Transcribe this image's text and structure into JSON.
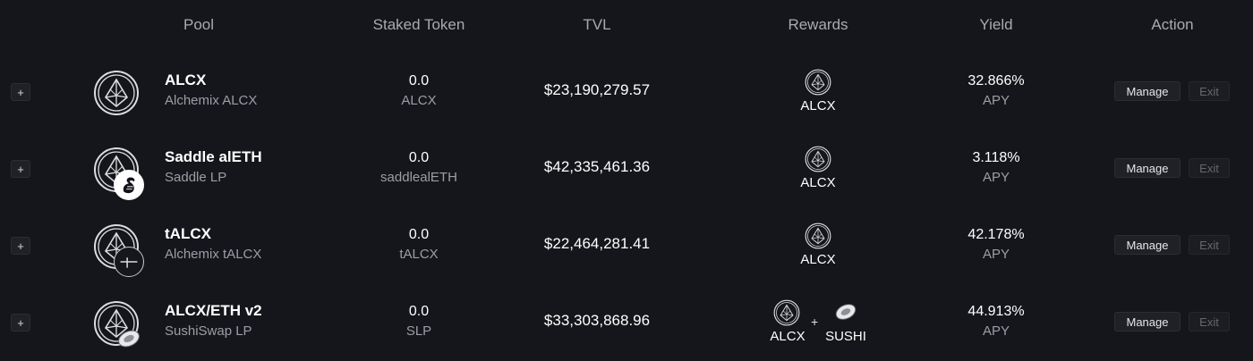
{
  "headers": {
    "pool": "Pool",
    "staked": "Staked Token",
    "tvl": "TVL",
    "rewards": "Rewards",
    "yield": "Yield",
    "action": "Action"
  },
  "expand_label": "+",
  "rows": [
    {
      "name": "ALCX",
      "subtitle": "Alchemix ALCX",
      "badge": "none",
      "staked_amount": "0.0",
      "staked_symbol": "ALCX",
      "tvl": "$23,190,279.57",
      "rewards": [
        "ALCX"
      ],
      "yield_value": "32.866%",
      "yield_type": "APY",
      "manage_label": "Manage",
      "exit_label": "Exit"
    },
    {
      "name": "Saddle alETH",
      "subtitle": "Saddle LP",
      "badge": "saddle-icon",
      "staked_amount": "0.0",
      "staked_symbol": "saddlealETH",
      "tvl": "$42,335,461.36",
      "rewards": [
        "ALCX"
      ],
      "yield_value": "3.118%",
      "yield_type": "APY",
      "manage_label": "Manage",
      "exit_label": "Exit"
    },
    {
      "name": "tALCX",
      "subtitle": "Alchemix tALCX",
      "badge": "tokemak-icon",
      "staked_amount": "0.0",
      "staked_symbol": "tALCX",
      "tvl": "$22,464,281.41",
      "rewards": [
        "ALCX"
      ],
      "yield_value": "42.178%",
      "yield_type": "APY",
      "manage_label": "Manage",
      "exit_label": "Exit"
    },
    {
      "name": "ALCX/ETH v2",
      "subtitle": "SushiSwap LP",
      "badge": "sushi-icon",
      "staked_amount": "0.0",
      "staked_symbol": "SLP",
      "tvl": "$33,303,868.96",
      "rewards": [
        "ALCX",
        "SUSHI"
      ],
      "reward_joiner": "+",
      "yield_value": "44.913%",
      "yield_type": "APY",
      "manage_label": "Manage",
      "exit_label": "Exit"
    }
  ]
}
